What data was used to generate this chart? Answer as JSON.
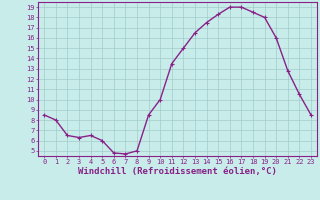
{
  "hours": [
    0,
    1,
    2,
    3,
    4,
    5,
    6,
    7,
    8,
    9,
    10,
    11,
    12,
    13,
    14,
    15,
    16,
    17,
    18,
    19,
    20,
    21,
    22,
    23
  ],
  "values": [
    8.5,
    8.0,
    6.5,
    6.3,
    6.5,
    6.0,
    4.8,
    4.7,
    5.0,
    8.5,
    10.0,
    13.5,
    15.0,
    16.5,
    17.5,
    18.3,
    19.0,
    19.0,
    18.5,
    18.0,
    16.0,
    12.8,
    10.5,
    8.5
  ],
  "line_color": "#882288",
  "marker": "+",
  "marker_size": 3.5,
  "marker_lw": 0.8,
  "bg_color": "#c8ecea",
  "grid_color": "#a0ccca",
  "title": "Windchill (Refroidissement éolien,°C)",
  "ylim": [
    4.5,
    19.5
  ],
  "yticks": [
    5,
    6,
    7,
    8,
    9,
    10,
    11,
    12,
    13,
    14,
    15,
    16,
    17,
    18,
    19
  ],
  "xticks": [
    0,
    1,
    2,
    3,
    4,
    5,
    6,
    7,
    8,
    9,
    10,
    11,
    12,
    13,
    14,
    15,
    16,
    17,
    18,
    19,
    20,
    21,
    22,
    23
  ],
  "label_color": "#882288",
  "spine_color": "#882288",
  "tick_fontsize": 5,
  "xlabel_fontsize": 6.5,
  "line_width": 1.0
}
